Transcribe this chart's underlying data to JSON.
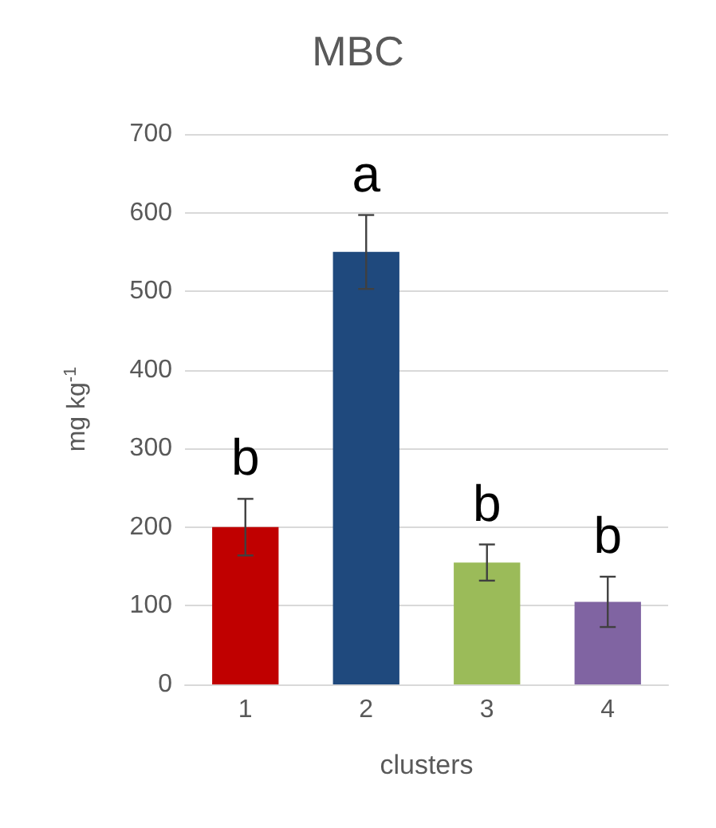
{
  "chart_data": {
    "type": "bar",
    "title": "MBC",
    "xlabel": "clusters",
    "ylabel": "mg kg$^{-1}$",
    "categories": [
      "1",
      "2",
      "3",
      "4"
    ],
    "values": [
      200,
      550,
      155,
      105
    ],
    "colors": [
      "#c00000",
      "#1f497d",
      "#9bbb59",
      "#8064a2"
    ],
    "errors": [
      36,
      47,
      23,
      32
    ],
    "ylim": [
      0,
      700
    ],
    "yticks": [
      0,
      100,
      200,
      300,
      400,
      500,
      600,
      700
    ],
    "grid": "y",
    "annotations": [
      "b",
      "a",
      "b",
      "b"
    ]
  }
}
